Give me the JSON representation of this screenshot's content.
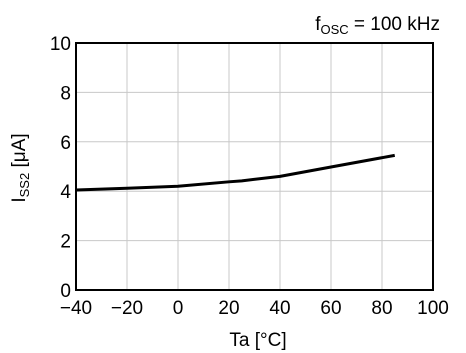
{
  "chart_data": {
    "type": "line",
    "annotation": {
      "prefix": "f",
      "subscript": "OSC",
      "suffix": " = 100 kHz"
    },
    "xlabel": "Ta [°C]",
    "ylabel": {
      "prefix": "I",
      "subscript": "SS2",
      "suffix": " [μA]"
    },
    "xlim": [
      -40,
      100
    ],
    "ylim": [
      0,
      10
    ],
    "x_ticks": [
      -40,
      -20,
      0,
      20,
      40,
      60,
      80,
      100
    ],
    "x_tick_labels": [
      "−40",
      "−20",
      "0",
      "20",
      "40",
      "60",
      "80",
      "100"
    ],
    "y_ticks": [
      0,
      2,
      4,
      6,
      8,
      10
    ],
    "y_tick_labels": [
      "0",
      "2",
      "4",
      "6",
      "8",
      "10"
    ],
    "grid": true,
    "series": [
      {
        "x": [
          -40,
          -20,
          0,
          20,
          25,
          40,
          60,
          85
        ],
        "y": [
          4.05,
          4.12,
          4.2,
          4.38,
          4.42,
          4.6,
          4.98,
          5.45
        ]
      }
    ],
    "line_color": "#000000",
    "grid_color": "#c8c8c8"
  }
}
